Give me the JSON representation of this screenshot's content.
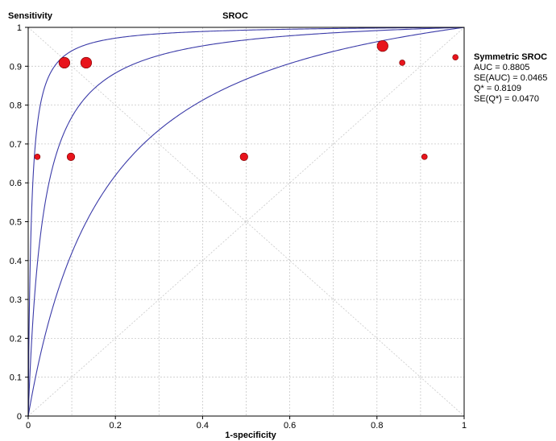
{
  "chart_data": {
    "type": "scatter",
    "title": "SROC",
    "xlabel": "1-specificity",
    "ylabel": "Sensitivity",
    "xlim": [
      0,
      1
    ],
    "ylim": [
      0,
      1
    ],
    "x_ticks": [
      "0",
      "0.2",
      "0.4",
      "0.6",
      "0.8",
      "1"
    ],
    "y_ticks": [
      "0",
      "0.1",
      "0.2",
      "0.3",
      "0.4",
      "0.5",
      "0.6",
      "0.7",
      "0.8",
      "0.9",
      "1"
    ],
    "grid": true,
    "marker_color": "#e8141c",
    "curve_color": "#3a3aa8",
    "points": [
      {
        "x": 0.083,
        "y": 0.909,
        "size": "large"
      },
      {
        "x": 0.133,
        "y": 0.909,
        "size": "large"
      },
      {
        "x": 0.813,
        "y": 0.952,
        "size": "large"
      },
      {
        "x": 0.858,
        "y": 0.909,
        "size": "small"
      },
      {
        "x": 0.98,
        "y": 0.923,
        "size": "small"
      },
      {
        "x": 0.021,
        "y": 0.667,
        "size": "small"
      },
      {
        "x": 0.098,
        "y": 0.667,
        "size": "medium"
      },
      {
        "x": 0.495,
        "y": 0.667,
        "size": "medium"
      },
      {
        "x": 0.909,
        "y": 0.667,
        "size": "small"
      }
    ],
    "curves": [
      {
        "dor": 140
      },
      {
        "dor": 30
      },
      {
        "dor": 6.5
      }
    ],
    "legend": {
      "title": "Symmetric SROC",
      "lines": [
        "AUC = 0.8805",
        "SE(AUC) = 0.0465",
        "Q* = 0.8109",
        "SE(Q*) = 0.0470"
      ]
    }
  }
}
